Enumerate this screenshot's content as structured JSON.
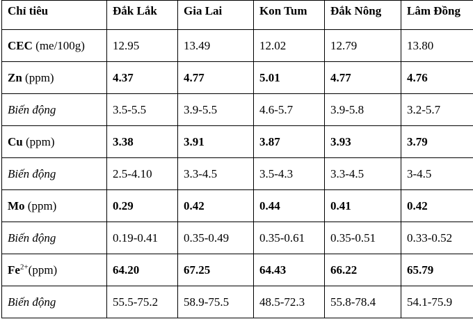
{
  "header": [
    "Chỉ tiêu",
    "Đắk Lắk",
    "Gia Lai",
    "Kon Tum",
    "Đắk Nông",
    "Lâm Đồng"
  ],
  "rows": [
    {
      "label_bold": "CEC",
      "label_rest": " (me/100g)",
      "values": [
        "12.95",
        "13.49",
        "12.02",
        "12.79",
        "13.80"
      ],
      "style": "normal"
    },
    {
      "label_bold": "Zn",
      "label_rest": " (ppm)",
      "values": [
        "4.37",
        "4.77",
        "5.01",
        "4.77",
        "4.76"
      ],
      "style": "bold"
    },
    {
      "label_ital": "Biến động",
      "values": [
        "3.5-5.5",
        "3.9-5.5",
        "4.6-5.7",
        "3.9-5.8",
        "3.2-5.7"
      ],
      "style": "normal"
    },
    {
      "label_bold": "Cu",
      "label_rest": " (ppm)",
      "values": [
        "3.38",
        "3.91",
        "3.87",
        "3.93",
        "3.79"
      ],
      "style": "bold"
    },
    {
      "label_ital": "Biến động",
      "values": [
        "2.5-4.10",
        "3.3-4.5",
        "3.5-4.3",
        "3.3-4.5",
        "3-4.5"
      ],
      "style": "normal"
    },
    {
      "label_bold": "Mo",
      "label_rest": " (ppm)",
      "values": [
        "0.29",
        "0.42",
        "0.44",
        "0.41",
        "0.42"
      ],
      "style": "bold"
    },
    {
      "label_ital": "Biến động",
      "values": [
        "0.19-0.41",
        "0.35-0.49",
        "0.35-0.61",
        "0.35-0.51",
        "0.33-0.52"
      ],
      "style": "normal"
    },
    {
      "label_bold": "Fe",
      "label_sup": "2+",
      "label_rest": "(ppm)",
      "values": [
        "64.20",
        "67.25",
        "64.43",
        "66.22",
        "65.79"
      ],
      "style": "bold"
    },
    {
      "label_ital": "Biến động",
      "values": [
        "55.5-75.2",
        "58.9-75.5",
        "48.5-72.3",
        "55.8-78.4",
        "54.1-75.9"
      ],
      "style": "normal"
    }
  ]
}
